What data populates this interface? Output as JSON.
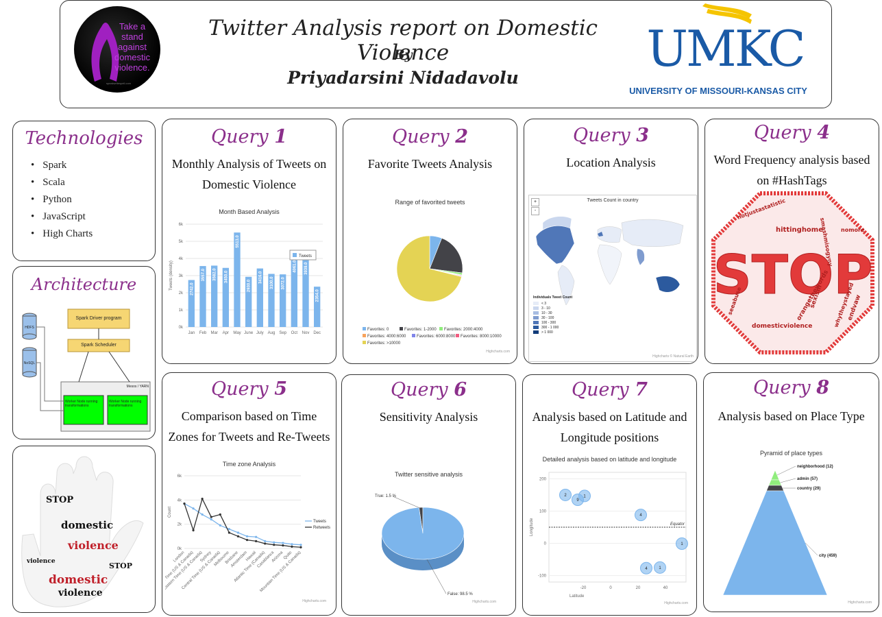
{
  "header": {
    "title": "Twitter Analysis report on Domestic Violence",
    "by": "By",
    "author": "Priyadarsini Nidadavolu",
    "badge_text": "Take a stand against domestic violence.",
    "badge_small": "speakwritespell.com",
    "umkc_logo": "UMKC",
    "umkc_subtitle": "UNIVERSITY OF MISSOURI-KANSAS CITY"
  },
  "technologies": {
    "title": "Technologies",
    "items": [
      "Spark",
      "Scala",
      "Python",
      "JavaScript",
      "High Charts"
    ]
  },
  "architecture": {
    "title": "Architecture",
    "hdfs": "HDFS",
    "nosql": "NoSQL",
    "driver": "Spark Driver program",
    "scheduler": "Spark Scheduler",
    "cluster": "Mesos / YARN",
    "worker1": "Worker Node running transformations",
    "worker2": "Worker Node running transformations"
  },
  "queries": [
    {
      "label": "Query",
      "num": "1",
      "subtitle": "Monthly Analysis of Tweets on Domestic Violence"
    },
    {
      "label": "Query",
      "num": "2",
      "subtitle": "Favorite Tweets Analysis"
    },
    {
      "label": "Query",
      "num": "3",
      "subtitle": "Location Analysis"
    },
    {
      "label": "Query",
      "num": "4",
      "subtitle": "Word Frequency analysis based on #HashTags"
    },
    {
      "label": "Query",
      "num": "5",
      "subtitle": "Comparison based on Time Zones for Tweets and Re-Tweets"
    },
    {
      "label": "Query",
      "num": "6",
      "subtitle": "Sensitivity Analysis"
    },
    {
      "label": "Query",
      "num": "7",
      "subtitle": "Analysis based on Latitude and Longitude positions"
    },
    {
      "label": "Query",
      "num": "8",
      "subtitle": "Analysis based on Place Type"
    }
  ],
  "credits": {
    "highcharts": "Highcharts.com",
    "map_credit": "Highcharts © Natural Earth"
  },
  "wordcloud": {
    "big": "STOP",
    "words": [
      "hittinghome",
      "domesticviolence",
      "notjustastatistic",
      "orangethewords",
      "seeabuse",
      "whytheystayed",
      "smashmisogyny",
      "endvaw",
      "sexism",
      "nomore"
    ]
  },
  "handcloud": {
    "words": [
      "STOP",
      "domestic",
      "violence",
      "STOP",
      "domestic",
      "violence",
      "STOP"
    ]
  },
  "chart_data": [
    {
      "type": "bar",
      "title": "Month Based Analysis",
      "ylabel": "Tweets (density)",
      "legend": "Tweets",
      "categories": [
        "Jan",
        "Feb",
        "Mar",
        "Apr",
        "May",
        "June",
        "July",
        "Aug",
        "Sep",
        "Oct",
        "Nov",
        "Dec"
      ],
      "values": [
        2742,
        3557,
        3582,
        3450,
        5513,
        2930,
        3416,
        3100,
        3072,
        4061,
        3939,
        2354
      ],
      "value_labels": [
        "2742.0",
        "3557.0",
        "3582.0",
        "3450.0",
        "5513.0",
        "2930.0",
        "3416.0",
        "3100.0",
        "3072.0",
        "4061.0",
        "3939.0",
        "2354.0"
      ],
      "yticks": [
        "0k",
        "1k",
        "2k",
        "3k",
        "4k",
        "5k",
        "6k"
      ],
      "ylim": [
        0,
        6000
      ]
    },
    {
      "type": "pie",
      "title": "Range of favorited tweets",
      "slices": [
        {
          "name": "Favorites: 0",
          "value": 6,
          "color": "#7cb5ec"
        },
        {
          "name": "Favorites: 1-2000",
          "value": 21,
          "color": "#434348"
        },
        {
          "name": "Favorites: 2000:4000",
          "value": 1,
          "color": "#90ed7d"
        },
        {
          "name": "Favorites: 4000:6000",
          "value": 0.3,
          "color": "#f7a35c"
        },
        {
          "name": "Favorites: 6000:8000",
          "value": 0.3,
          "color": "#8085e9"
        },
        {
          "name": "Favorites: 8000:10000",
          "value": 0.3,
          "color": "#f15c80"
        },
        {
          "name": "Favorites: >10000",
          "value": 71,
          "color": "#e4d354"
        }
      ]
    },
    {
      "type": "map",
      "title": "Tweets Count in country",
      "legend_title": "Individuals Tweet Count",
      "legend": [
        "< 3",
        "3 - 10",
        "10 - 30",
        "30 - 100",
        "100 - 300",
        "300 - 1 000",
        "> 1 000"
      ],
      "legend_colors": [
        "#e6ecf7",
        "#cad7ee",
        "#a8bde2",
        "#7f9ccf",
        "#5077b8",
        "#2c5a9e",
        "#123c7a"
      ],
      "zoom_buttons": [
        "+",
        "-"
      ]
    },
    {
      "type": "line",
      "title": "Time zone Analysis",
      "ylabel": "Count",
      "yticks": [
        "0k",
        "2k",
        "4k",
        "6k"
      ],
      "ylim": [
        0,
        6000
      ],
      "categories": [
        "London",
        "Pacific Time (US & Canada)",
        "Eastern Time (US & Canada)",
        "Sydney",
        "Central Time (US & Canada)",
        "Melbourne",
        "Brisbane",
        "Amsterdam",
        "Hawaii",
        "Atlantic Time (Canada)",
        "Casablanca",
        "Arizona",
        "Quito",
        "Mountain Time (US & Canada)"
      ],
      "series": [
        {
          "name": "Tweets",
          "color": "#7cb5ec",
          "values": [
            3700,
            3300,
            2800,
            2400,
            1900,
            1600,
            1300,
            1000,
            950,
            600,
            500,
            450,
            350,
            300
          ]
        },
        {
          "name": "Retweets",
          "color": "#333333",
          "values": [
            3700,
            1500,
            4100,
            2600,
            2800,
            1300,
            1000,
            700,
            600,
            400,
            300,
            250,
            150,
            100
          ]
        }
      ]
    },
    {
      "type": "pie",
      "title": "Twitter sensitive analysis",
      "slices": [
        {
          "name": "True: 1.5 %",
          "value": 1.5,
          "color": "#434348"
        },
        {
          "name": "False: 98.5 %",
          "value": 98.5,
          "color": "#7cb5ec"
        }
      ]
    },
    {
      "type": "scatter",
      "title": "Detailed analysis based on latitude and longitude",
      "xlabel": "Latitude",
      "ylabel": "Longitude",
      "xticks": [
        "-20",
        "0",
        "20",
        "40"
      ],
      "yticks": [
        "200",
        "100",
        "0",
        "-100"
      ],
      "annotation": "Equator",
      "points": [
        {
          "x": -33,
          "y": 150,
          "label": "2"
        },
        {
          "x": -24,
          "y": 135,
          "label": "9"
        },
        {
          "x": -19,
          "y": 147,
          "label": "1"
        },
        {
          "x": 22,
          "y": 88,
          "label": "4"
        },
        {
          "x": 52,
          "y": -1,
          "label": "1"
        },
        {
          "x": 26,
          "y": -77,
          "label": "4"
        },
        {
          "x": 36,
          "y": -75,
          "label": "1"
        }
      ]
    },
    {
      "type": "pyramid",
      "title": "Pyramid of place types",
      "slices": [
        {
          "name": "neighborhood",
          "value": 12,
          "label": "neighborhood (12)",
          "color": "#90ed7d"
        },
        {
          "name": "admin",
          "value": 57,
          "label": "admin (57)",
          "color": "#90ed7d"
        },
        {
          "name": "country",
          "value": 29,
          "label": "country (29)",
          "color": "#434348"
        },
        {
          "name": "city",
          "value": 459,
          "label": "city (459)",
          "color": "#7cb5ec"
        }
      ]
    }
  ]
}
